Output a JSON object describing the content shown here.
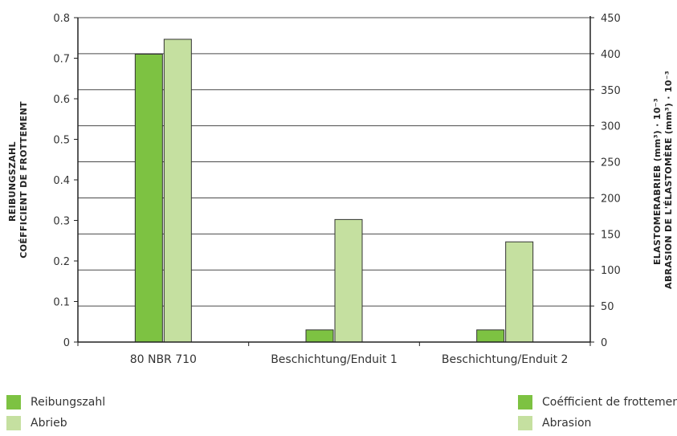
{
  "chart_data": {
    "type": "bar",
    "categories": [
      "80 NBR 710",
      "Beschichtung/Enduit 1",
      "Beschichtung/Enduit 2"
    ],
    "series": [
      {
        "axis": "left",
        "color": "#7dc242",
        "values": [
          0.71,
          0.03,
          0.03
        ]
      },
      {
        "axis": "right",
        "color": "#c5e0a0",
        "values": [
          420,
          170,
          139
        ]
      }
    ],
    "y_left": {
      "lines": [
        "REIBUNGSZAHL",
        "COÉFFICIENT DE FROTTEMENT"
      ],
      "lim": [
        0,
        0.8
      ],
      "ticks": [
        0,
        0.1,
        0.2,
        0.3,
        0.4,
        0.5,
        0.6,
        0.7,
        0.8
      ]
    },
    "y_right": {
      "lines": [
        "ELASTOMERABRIEB (mm³) · 10⁻³",
        "ABRASION DE L'ÉLASTOMÈRE (mm³) · 10⁻³"
      ],
      "lim": [
        0,
        450
      ],
      "ticks": [
        0,
        50,
        100,
        150,
        200,
        250,
        300,
        350,
        400,
        450
      ]
    },
    "grid": true,
    "legend": {
      "left": [
        "Reibungszahl",
        "Abrieb"
      ],
      "right": [
        "Coéfficient de frottement",
        "Abrasion"
      ]
    }
  }
}
